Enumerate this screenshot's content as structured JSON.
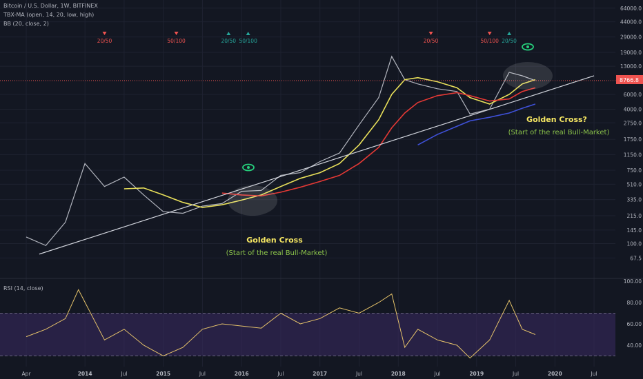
{
  "chart_data": [
    {
      "type": "line",
      "title": "Bitcoin / U.S. Dollar, 1W, BITFINEX",
      "log_scale": true,
      "indicator_labels": [
        "TBX-MA (open, 14, 20, low, high)",
        "BB (20, close, 2)"
      ],
      "y_ticks": [
        "64000.0",
        "44000.0",
        "29000.0",
        "19000.0",
        "13000.0",
        "6000.0",
        "4000.0",
        "2750.0",
        "1750.0",
        "1150.0",
        "750.0",
        "510.0",
        "335.0",
        "215.0",
        "145.0",
        "100.0",
        "67.5"
      ],
      "last_price": "8766.8",
      "x_ticks": [
        "Apr",
        "2014",
        "Jul",
        "2015",
        "Jul",
        "2016",
        "Jul",
        "2017",
        "Jul",
        "2018",
        "Jul",
        "2019",
        "Jul",
        "2020",
        "Jul"
      ],
      "x": [
        "2013-04",
        "2013-07",
        "2013-10",
        "2014-01",
        "2014-04",
        "2014-07",
        "2014-10",
        "2015-01",
        "2015-04",
        "2015-07",
        "2015-10",
        "2016-01",
        "2016-04",
        "2016-07",
        "2016-10",
        "2017-01",
        "2017-04",
        "2017-07",
        "2017-10",
        "2017-12",
        "2018-02",
        "2018-04",
        "2018-07",
        "2018-10",
        "2018-12",
        "2019-03",
        "2019-06",
        "2019-08",
        "2019-10"
      ],
      "series": [
        {
          "values": [
            120,
            95,
            180,
            900,
            480,
            620,
            380,
            240,
            230,
            280,
            300,
            420,
            430,
            650,
            700,
            950,
            1200,
            2600,
            5500,
            17000,
            9000,
            8000,
            7000,
            6500,
            3500,
            4000,
            11000,
            10000,
            8766.8
          ],
          "color": "#b2b5be"
        },
        {
          "values": [
            null,
            null,
            null,
            null,
            null,
            450,
            460,
            380,
            310,
            270,
            290,
            330,
            380,
            480,
            600,
            700,
            900,
            1500,
            3000,
            6000,
            9000,
            9500,
            8500,
            7200,
            5500,
            4600,
            6000,
            8000,
            9000
          ],
          "color": "#e9e05a"
        },
        {
          "values": [
            null,
            null,
            null,
            null,
            null,
            null,
            null,
            null,
            null,
            null,
            400,
            380,
            370,
            410,
            470,
            550,
            650,
            900,
            1400,
            2400,
            3600,
            4800,
            5800,
            6300,
            5800,
            5000,
            5300,
            6500,
            7200
          ],
          "color": "#e53935"
        },
        {
          "values": [
            null,
            null,
            null,
            null,
            null,
            null,
            null,
            null,
            null,
            null,
            null,
            null,
            null,
            null,
            null,
            null,
            null,
            null,
            null,
            null,
            null,
            1500,
            2000,
            2500,
            2900,
            3200,
            3600,
            4100,
            4600
          ],
          "color": "#3f51d9"
        }
      ],
      "signals": [
        {
          "label": "20/50",
          "direction": "down",
          "color": "#ef5350"
        },
        {
          "label": "50/100",
          "direction": "down",
          "color": "#ef5350"
        },
        {
          "label": "20/50",
          "direction": "up",
          "color": "#26a69a"
        },
        {
          "label": "50/100",
          "direction": "up",
          "color": "#26a69a"
        },
        {
          "label": "20/50",
          "direction": "down",
          "color": "#ef5350"
        },
        {
          "label": "50/100",
          "direction": "down",
          "color": "#ef5350"
        },
        {
          "label": "20/50",
          "direction": "up",
          "color": "#26a69a"
        }
      ],
      "annotations": [
        {
          "text": "Golden Cross",
          "color": "#f5e663"
        },
        {
          "text": "(Start of the real Bull-Market)",
          "color": "#8bc34a"
        },
        {
          "text": "Golden Cross?",
          "color": "#f5e663"
        },
        {
          "text": "(Start of the real Bull-Market)",
          "color": "#8bc34a"
        }
      ]
    },
    {
      "type": "line",
      "title": "RSI (14, close)",
      "y_ticks": [
        "100.00",
        "80.00",
        "60.00",
        "40.00"
      ],
      "ylim": [
        20,
        100
      ],
      "band": [
        30,
        70
      ],
      "x": [
        "2013-04",
        "2013-07",
        "2013-10",
        "2013-12",
        "2014-04",
        "2014-07",
        "2014-10",
        "2015-01",
        "2015-04",
        "2015-07",
        "2015-10",
        "2016-01",
        "2016-04",
        "2016-07",
        "2016-10",
        "2017-01",
        "2017-04",
        "2017-07",
        "2017-10",
        "2017-12",
        "2018-02",
        "2018-04",
        "2018-07",
        "2018-10",
        "2018-12",
        "2019-03",
        "2019-06",
        "2019-08",
        "2019-10"
      ],
      "values": [
        48,
        55,
        65,
        92,
        45,
        55,
        40,
        30,
        38,
        55,
        60,
        58,
        56,
        70,
        60,
        65,
        75,
        70,
        80,
        88,
        38,
        55,
        45,
        40,
        28,
        45,
        82,
        55,
        50
      ],
      "color": "#e6c36a"
    }
  ]
}
